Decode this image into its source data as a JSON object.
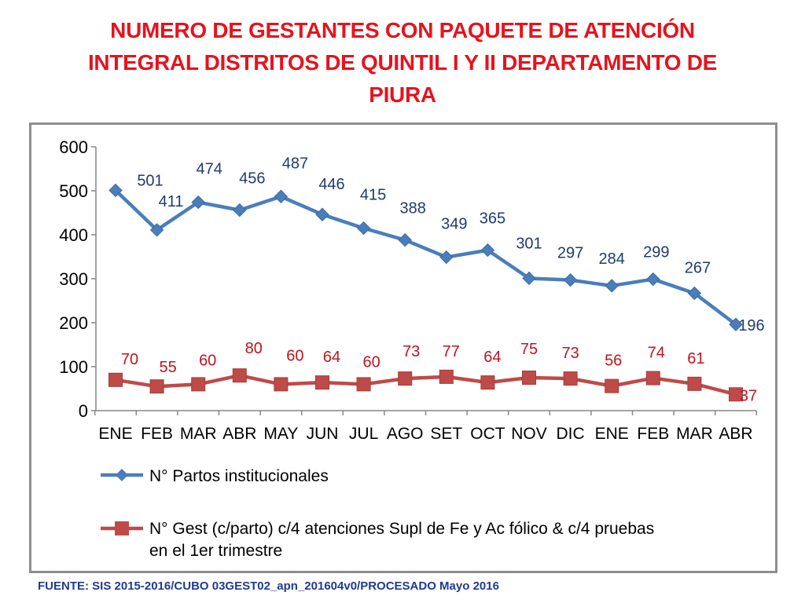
{
  "title_lines": [
    "NUMERO DE GESTANTES CON PAQUETE DE ATENCIÓN",
    "INTEGRAL  DISTRITOS DE QUINTIL I Y II DEPARTAMENTO DE",
    "PIURA"
  ],
  "source": "FUENTE: SIS 2015-2016/CUBO 03GEST02_apn_201604v0/PROCESADO Mayo 2016",
  "colors": {
    "title": "#e8121d",
    "series1": "#4a7ebb",
    "series2": "#be4b48",
    "label1": "#1f3b6e",
    "label2": "#c0141c",
    "source": "#1f3b8f"
  },
  "chart_data": {
    "type": "line",
    "title": "NUMERO DE GESTANTES CON PAQUETE DE ATENCIÓN INTEGRAL  DISTRITOS DE QUINTIL I Y II DEPARTAMENTO DE PIURA",
    "xlabel": "",
    "ylabel": "",
    "ylim": [
      0,
      600
    ],
    "yticks": [
      "0",
      "100",
      "200",
      "300",
      "400",
      "500",
      "600"
    ],
    "categories": [
      "ENE",
      "FEB",
      "MAR",
      "ABR",
      "MAY",
      "JUN",
      "JUL",
      "AGO",
      "SET",
      "OCT",
      "NOV",
      "DIC",
      "ENE",
      "FEB",
      "MAR",
      "ABR"
    ],
    "grid": false,
    "legend_position": "bottom",
    "series": [
      {
        "name": "N° Partos institucionales",
        "marker": "diamond",
        "values": [
          501,
          411,
          474,
          456,
          487,
          446,
          415,
          388,
          349,
          365,
          301,
          297,
          284,
          299,
          267,
          196
        ],
        "labels": [
          "501",
          "411",
          "474",
          "456",
          "487",
          "446",
          "415",
          "388",
          "349",
          "365",
          "301",
          "297",
          "284",
          "299",
          "267",
          "196"
        ]
      },
      {
        "name": "N° Gest (c/parto) c/4 atenciones Supl de Fe y Ac fólico & c/4 pruebas en el 1er trimestre",
        "legend_lines": [
          "N° Gest (c/parto) c/4 atenciones Supl de Fe y Ac fólico & c/4 pruebas",
          "en el 1er trimestre"
        ],
        "marker": "square",
        "values": [
          70,
          55,
          60,
          80,
          60,
          64,
          60,
          73,
          77,
          64,
          75,
          73,
          56,
          74,
          61,
          37
        ],
        "labels": [
          "70",
          "55",
          "60",
          "80",
          "60",
          "64",
          "60",
          "73",
          "77",
          "64",
          "75",
          "73",
          "56",
          "74",
          "61",
          "37"
        ]
      }
    ]
  }
}
